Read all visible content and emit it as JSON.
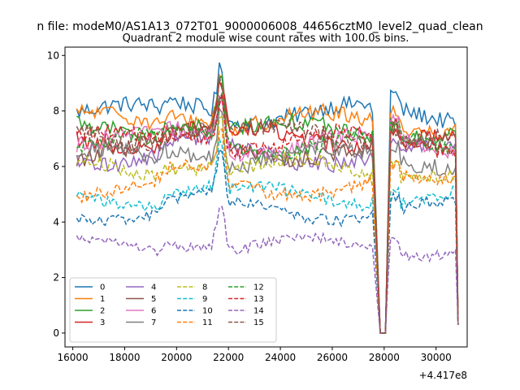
{
  "chart_data": {
    "type": "line",
    "suptitle": "n file: modeM0/AS1A13_072T01_9000006008_44656cztM0_level2_quad_clean",
    "title": "Quadrant 2 module wise count rates with 100.0s bins.",
    "xlabel": "",
    "ylabel": "",
    "x_offset_label": "+4.417e8",
    "xlim": [
      15700,
      31200
    ],
    "ylim": [
      -0.5,
      10.3
    ],
    "xticks": [
      16000,
      18000,
      20000,
      22000,
      24000,
      26000,
      28000,
      30000
    ],
    "xtick_labels": [
      "16000",
      "18000",
      "20000",
      "22000",
      "24000",
      "26000",
      "28000",
      "30000"
    ],
    "yticks": [
      0,
      2,
      4,
      6,
      8,
      10
    ],
    "ytick_labels": [
      "0",
      "2",
      "4",
      "6",
      "8",
      "10"
    ],
    "x_start": 16150,
    "bin_width": 100,
    "x_end": 30850,
    "gap_drop_start": 27550,
    "gap_zero": [
      27850,
      28050
    ],
    "gap_return": 28250,
    "end_drop_value": 0.3,
    "legend": {
      "location": "lower-left",
      "ncol": 4
    },
    "series": [
      {
        "name": "0",
        "color": "#1f77b4",
        "dash": "solid",
        "base": 7.9,
        "noise": 0.3
      },
      {
        "name": "1",
        "color": "#ff7f0e",
        "dash": "solid",
        "base": 7.6,
        "noise": 0.3
      },
      {
        "name": "2",
        "color": "#2ca02c",
        "dash": "solid",
        "base": 7.3,
        "noise": 0.3
      },
      {
        "name": "3",
        "color": "#d62728",
        "dash": "solid",
        "base": 7.0,
        "noise": 0.3
      },
      {
        "name": "4",
        "color": "#9467bd",
        "dash": "solid",
        "base": 6.4,
        "noise": 0.3
      },
      {
        "name": "5",
        "color": "#8c564b",
        "dash": "solid",
        "base": 6.6,
        "noise": 0.3
      },
      {
        "name": "6",
        "color": "#e377c2",
        "dash": "solid",
        "base": 6.8,
        "noise": 0.3
      },
      {
        "name": "7",
        "color": "#7f7f7f",
        "dash": "solid",
        "base": 6.3,
        "noise": 0.3
      },
      {
        "name": "8",
        "color": "#bcbd22",
        "dash": "dashed",
        "base": 5.9,
        "noise": 0.25
      },
      {
        "name": "9",
        "color": "#17becf",
        "dash": "dashed",
        "base": 4.9,
        "noise": 0.22
      },
      {
        "name": "10",
        "color": "#1f77b4",
        "dash": "dashed",
        "base": 4.4,
        "noise": 0.2
      },
      {
        "name": "11",
        "color": "#ff7f0e",
        "dash": "dashed",
        "base": 5.3,
        "noise": 0.25
      },
      {
        "name": "12",
        "color": "#2ca02c",
        "dash": "dashed",
        "base": 6.8,
        "noise": 0.28
      },
      {
        "name": "13",
        "color": "#d62728",
        "dash": "dashed",
        "base": 6.9,
        "noise": 0.28
      },
      {
        "name": "14",
        "color": "#9467bd",
        "dash": "dashed",
        "base": 3.1,
        "noise": 0.18
      },
      {
        "name": "15",
        "color": "#8c564b",
        "dash": "dashed",
        "base": 7.1,
        "noise": 0.3
      }
    ]
  }
}
